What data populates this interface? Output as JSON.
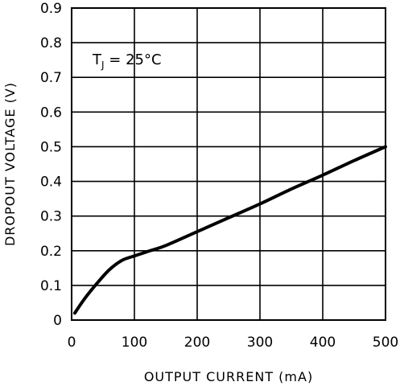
{
  "chart_data": {
    "type": "line",
    "title": "",
    "xlabel": "OUTPUT CURRENT (mA)",
    "ylabel": "DROPOUT VOLTAGE (V)",
    "xlim": [
      0,
      500
    ],
    "ylim": [
      0,
      0.9
    ],
    "x_ticks": [
      0,
      100,
      200,
      300,
      400,
      500
    ],
    "y_ticks": [
      0,
      0.1,
      0.2,
      0.3,
      0.4,
      0.5,
      0.6,
      0.7,
      0.8,
      0.9
    ],
    "x_tick_labels": [
      "0",
      "100",
      "200",
      "300",
      "400",
      "500"
    ],
    "y_tick_labels": [
      "0",
      "0.1",
      "0.2",
      "0.3",
      "0.4",
      "0.5",
      "0.6",
      "0.7",
      "0.8",
      "0.9"
    ],
    "grid": true,
    "annotation": {
      "main": "T",
      "subscript": "J",
      "rest": " = 25°C"
    },
    "series": [
      {
        "x": [
          5,
          20,
          40,
          60,
          80,
          100,
          125,
          150,
          200,
          250,
          300,
          350,
          400,
          450,
          500
        ],
        "y": [
          0.02,
          0.06,
          0.105,
          0.145,
          0.172,
          0.185,
          0.2,
          0.215,
          0.255,
          0.295,
          0.335,
          0.378,
          0.418,
          0.46,
          0.5
        ]
      }
    ]
  }
}
